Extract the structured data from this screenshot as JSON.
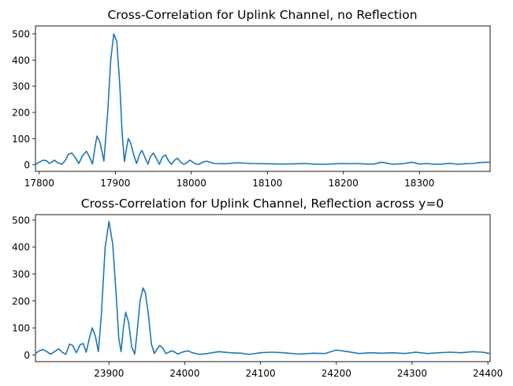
{
  "figure": {
    "line_color": "#1f77b4"
  },
  "chart_data": [
    {
      "type": "line",
      "title": "Cross-Correlation for Uplink Channel, no Reflection",
      "xlabel": "",
      "ylabel": "",
      "xlim": [
        17795,
        18393
      ],
      "ylim": [
        -25,
        530
      ],
      "xticks": [
        17800,
        17900,
        18000,
        18100,
        18200,
        18300
      ],
      "yticks": [
        0,
        100,
        200,
        300,
        400,
        500
      ],
      "grid": false,
      "legend": "none",
      "series": [
        {
          "x": [
            17795,
            17800,
            17805,
            17810,
            17813,
            17817,
            17820,
            17824,
            17830,
            17835,
            17838,
            17843,
            17848,
            17852,
            17857,
            17862,
            17866,
            17870,
            17874,
            17876,
            17880,
            17885,
            17890,
            17894,
            17898,
            17902,
            17906,
            17909,
            17912,
            17914,
            17917,
            17920,
            17924,
            17928,
            17932,
            17935,
            17939,
            17943,
            17946,
            17950,
            17954,
            17958,
            17962,
            17966,
            17970,
            17974,
            17978,
            17982,
            17986,
            17990,
            17994,
            17998,
            18002,
            18006,
            18010,
            18015,
            18020,
            18030,
            18045,
            18060,
            18080,
            18100,
            18120,
            18140,
            18150,
            18160,
            18175,
            18190,
            18200,
            18210,
            18220,
            18230,
            18240,
            18250,
            18265,
            18280,
            18290,
            18300,
            18310,
            18320,
            18330,
            18340,
            18350,
            18360,
            18370,
            18380,
            18393
          ],
          "y": [
            2,
            10,
            18,
            15,
            5,
            12,
            18,
            8,
            2,
            20,
            40,
            45,
            25,
            5,
            35,
            52,
            30,
            3,
            80,
            110,
            85,
            14,
            200,
            400,
            500,
            470,
            300,
            120,
            12,
            50,
            100,
            85,
            40,
            5,
            40,
            55,
            28,
            3,
            30,
            45,
            25,
            2,
            30,
            38,
            15,
            2,
            18,
            25,
            10,
            2,
            8,
            18,
            10,
            3,
            2,
            10,
            14,
            5,
            4,
            8,
            5,
            4,
            3,
            4,
            5,
            3,
            2,
            4,
            5,
            4,
            5,
            3,
            3,
            10,
            2,
            5,
            10,
            3,
            5,
            2,
            3,
            6,
            2,
            4,
            5,
            9,
            10
          ]
        }
      ]
    },
    {
      "type": "line",
      "title": "Cross-Correlation for Uplink Channel, Reflection across y=0",
      "xlabel": "",
      "ylabel": "",
      "xlim": [
        23803,
        24403
      ],
      "ylim": [
        -25,
        520
      ],
      "xticks": [
        23900,
        24000,
        24100,
        24200,
        24300,
        24400
      ],
      "yticks": [
        0,
        100,
        200,
        300,
        400,
        500
      ],
      "grid": false,
      "legend": "none",
      "series": [
        {
          "x": [
            23803,
            23808,
            23813,
            23818,
            23823,
            23828,
            23834,
            23838,
            23843,
            23848,
            23852,
            23857,
            23862,
            23866,
            23870,
            23874,
            23878,
            23882,
            23886,
            23890,
            23895,
            23900,
            23905,
            23910,
            23913,
            23916,
            23919,
            23922,
            23926,
            23930,
            23934,
            23937,
            23941,
            23945,
            23948,
            23952,
            23956,
            23960,
            23963,
            23967,
            23971,
            23975,
            23979,
            23983,
            23987,
            23991,
            23995,
            23999,
            24004,
            24010,
            24020,
            24030,
            24045,
            24060,
            24075,
            24085,
            24100,
            24115,
            24130,
            24150,
            24170,
            24185,
            24200,
            24215,
            24230,
            24245,
            24260,
            24275,
            24290,
            24305,
            24320,
            24335,
            24350,
            24365,
            24380,
            24393,
            24403
          ],
          "y": [
            5,
            15,
            20,
            12,
            3,
            12,
            22,
            10,
            2,
            40,
            35,
            8,
            38,
            42,
            10,
            60,
            100,
            70,
            12,
            150,
            400,
            495,
            410,
            200,
            60,
            12,
            100,
            158,
            120,
            30,
            3,
            80,
            200,
            248,
            230,
            150,
            40,
            5,
            20,
            35,
            25,
            5,
            10,
            15,
            10,
            3,
            8,
            12,
            15,
            8,
            2,
            5,
            12,
            8,
            6,
            2,
            8,
            10,
            8,
            3,
            6,
            5,
            18,
            12,
            5,
            8,
            6,
            8,
            5,
            10,
            5,
            8,
            10,
            8,
            12,
            10,
            5
          ]
        }
      ]
    }
  ]
}
